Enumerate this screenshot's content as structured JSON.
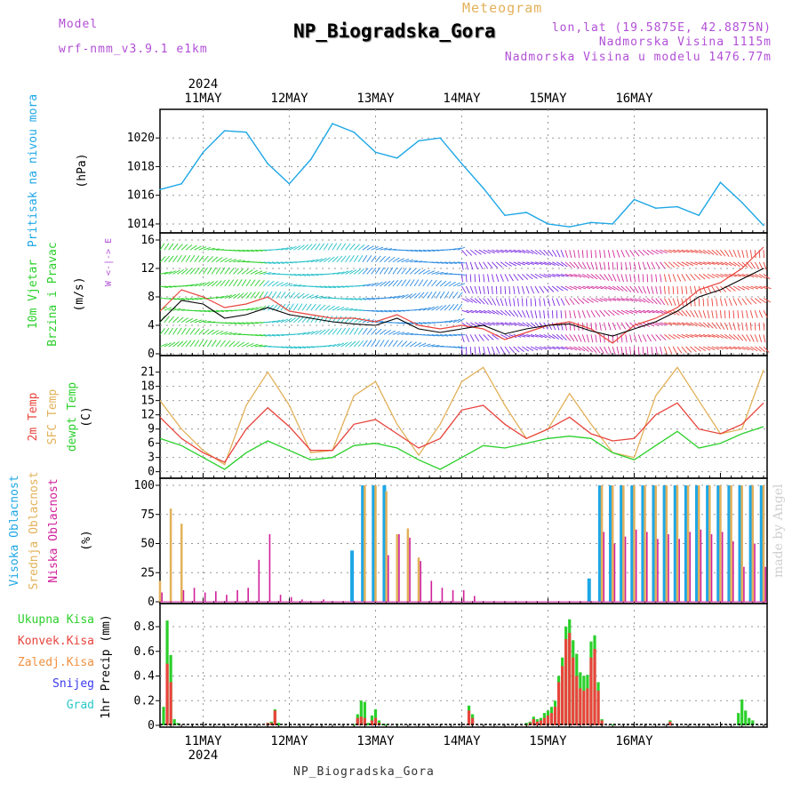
{
  "header": {
    "model_label": "Model",
    "model_name": "wrf-nmm_v3.9.1  e1km",
    "meteogram_label": "Meteogram",
    "station": "NP_Biogradska_Gora",
    "coords": "lon,lat (19.5875E, 42.8875N)",
    "elevation": "Nadmorska Visina 1115m",
    "model_elevation": "Nadmorska Visina u modelu 1476.77m",
    "footer_station": "NP_Biogradska_Gora",
    "signature": "made by Angel"
  },
  "colors": {
    "purple": "#b14fd6",
    "gold": "#e2b15a",
    "cyan": "#1ea7e6",
    "green": "#2bd02b",
    "red": "#e8443c",
    "orange": "#f09040",
    "blue": "#3a3af0",
    "teal": "#2cc8c8",
    "magenta": "#d0209a"
  },
  "chart_data": [
    {
      "panel": "pressure",
      "type": "line",
      "ylabel": "Pritisak na nivou mora",
      "unit": "(hPa)",
      "ylim": [
        1013.5,
        1021.5
      ],
      "yticks": [
        1014,
        1016,
        1018,
        1020
      ],
      "year": "2024",
      "day_labels": [
        "11MAY",
        "12MAY",
        "13MAY",
        "14MAY",
        "15MAY",
        "16MAY"
      ],
      "x_hours": [
        0,
        6,
        12,
        18,
        24,
        30,
        36,
        42,
        48,
        54,
        60,
        66,
        72,
        78,
        84,
        90,
        96,
        102,
        108,
        114,
        120,
        126,
        132,
        138,
        144,
        150,
        156,
        162,
        168
      ],
      "values": [
        1016.4,
        1016.8,
        1019.0,
        1020.5,
        1020.4,
        1018.2,
        1016.8,
        1018.5,
        1021.0,
        1020.4,
        1019.0,
        1018.6,
        1019.8,
        1020.0,
        1018.2,
        1016.5,
        1014.6,
        1014.8,
        1014.0,
        1013.8,
        1014.1,
        1014.0,
        1015.7,
        1015.1,
        1015.2,
        1014.6,
        1016.9,
        1015.5,
        1013.9
      ]
    },
    {
      "panel": "wind",
      "type": "line",
      "ylabel_1": "10m Vjetar",
      "ylabel_2": "Brzina i Pravac",
      "unit": "(m/s)",
      "direction_legend": "W  <-|->  E",
      "ylim": [
        0,
        16
      ],
      "yticks": [
        0,
        4,
        8,
        12,
        16
      ],
      "x_hours": [
        0,
        6,
        12,
        18,
        24,
        30,
        36,
        42,
        48,
        54,
        60,
        66,
        72,
        78,
        84,
        90,
        96,
        102,
        108,
        114,
        120,
        126,
        132,
        138,
        144,
        150,
        156,
        162,
        168
      ],
      "series": [
        {
          "name": "speed",
          "values": [
            4.5,
            7.5,
            7.0,
            5.0,
            5.5,
            6.5,
            5.5,
            5.0,
            4.5,
            4.2,
            4.0,
            5.0,
            3.5,
            3.0,
            3.5,
            4.0,
            2.8,
            3.5,
            4.0,
            4.2,
            3.2,
            2.5,
            3.5,
            4.5,
            6.0,
            8.0,
            9.0,
            10.5,
            12.0
          ]
        },
        {
          "name": "gust",
          "values": [
            6.0,
            9.0,
            8.0,
            6.5,
            7.0,
            8.0,
            6.0,
            5.5,
            5.0,
            5.0,
            4.5,
            5.5,
            4.0,
            3.5,
            4.0,
            3.5,
            2.0,
            3.0,
            4.0,
            4.5,
            3.5,
            1.5,
            4.0,
            5.0,
            6.5,
            9.0,
            10.0,
            12.0,
            15.0
          ]
        }
      ]
    },
    {
      "panel": "temperature",
      "type": "line",
      "ylabel_1": "2m Temp",
      "ylabel_2": "SFC Temp",
      "ylabel_3": "dewpt Temp",
      "unit": "(C)",
      "ylim": [
        -1,
        23
      ],
      "yticks": [
        0,
        3,
        6,
        9,
        12,
        15,
        18,
        21
      ],
      "x_hours": [
        0,
        6,
        12,
        18,
        24,
        30,
        36,
        42,
        48,
        54,
        60,
        66,
        72,
        78,
        84,
        90,
        96,
        102,
        108,
        114,
        120,
        126,
        132,
        138,
        144,
        150,
        156,
        162,
        168
      ],
      "series": [
        {
          "name": "2m",
          "values": [
            11.5,
            7.0,
            4.0,
            2.0,
            9.0,
            13.5,
            9.5,
            4.5,
            4.5,
            10.0,
            11.0,
            8.0,
            5.0,
            7.0,
            13.0,
            14.0,
            10.0,
            7.0,
            9.0,
            11.5,
            8.0,
            6.5,
            7.0,
            12.0,
            14.5,
            9.0,
            8.0,
            10.0,
            14.5
          ]
        },
        {
          "name": "sfc",
          "values": [
            15.0,
            9.0,
            4.5,
            1.5,
            14.0,
            21.0,
            14.0,
            4.0,
            4.5,
            16.0,
            19.0,
            10.0,
            3.5,
            10.0,
            19.0,
            22.0,
            14.0,
            7.0,
            9.0,
            16.5,
            10.0,
            4.0,
            3.0,
            16.0,
            22.0,
            15.0,
            8.0,
            9.0,
            21.5
          ]
        },
        {
          "name": "dewpt",
          "values": [
            7.0,
            5.5,
            3.0,
            0.5,
            4.0,
            6.5,
            4.5,
            2.5,
            3.0,
            5.5,
            6.0,
            5.0,
            2.5,
            0.5,
            3.0,
            5.5,
            5.0,
            6.0,
            7.0,
            7.5,
            7.0,
            4.0,
            2.5,
            5.5,
            8.5,
            5.0,
            6.0,
            8.0,
            9.5
          ]
        }
      ]
    },
    {
      "panel": "clouds",
      "type": "bar",
      "ylabel_1": "Visoka Oblacnost",
      "ylabel_2": "Srednja Oblacnost",
      "ylabel_3": "Niska Oblacnost",
      "unit": "(%)",
      "ylim": [
        0,
        100
      ],
      "yticks": [
        0,
        25,
        50,
        75,
        100
      ],
      "x_hours": [
        0,
        3,
        6,
        9,
        12,
        15,
        18,
        21,
        24,
        27,
        30,
        33,
        36,
        39,
        42,
        45,
        48,
        51,
        54,
        57,
        60,
        63,
        66,
        69,
        72,
        75,
        78,
        81,
        84,
        87,
        90,
        93,
        96,
        99,
        102,
        105,
        108,
        111,
        114,
        117,
        120,
        123,
        126,
        129,
        132,
        135,
        138,
        141,
        144,
        147,
        150,
        153,
        156,
        159,
        162,
        165,
        168
      ],
      "series": [
        {
          "name": "high",
          "values": [
            0,
            0,
            0,
            0,
            0,
            0,
            0,
            0,
            0,
            0,
            0,
            0,
            0,
            0,
            0,
            0,
            0,
            0,
            44,
            100,
            100,
            100,
            0,
            0,
            0,
            0,
            0,
            0,
            0,
            0,
            0,
            0,
            0,
            0,
            0,
            0,
            0,
            0,
            0,
            0,
            20,
            100,
            100,
            100,
            100,
            100,
            100,
            100,
            100,
            100,
            100,
            100,
            100,
            100,
            100,
            100,
            100
          ]
        },
        {
          "name": "middle",
          "values": [
            18,
            80,
            67,
            0,
            0,
            0,
            0,
            0,
            0,
            0,
            0,
            0,
            0,
            0,
            0,
            0,
            0,
            0,
            0,
            100,
            100,
            95,
            58,
            63,
            38,
            0,
            0,
            0,
            0,
            0,
            0,
            0,
            0,
            0,
            0,
            0,
            0,
            0,
            0,
            0,
            0,
            100,
            100,
            100,
            100,
            100,
            100,
            100,
            100,
            100,
            100,
            100,
            100,
            100,
            100,
            100,
            100
          ]
        },
        {
          "name": "low",
          "values": [
            8,
            0,
            10,
            12,
            8,
            9,
            6,
            10,
            12,
            36,
            58,
            6,
            4,
            2,
            0,
            2,
            0,
            0,
            0,
            0,
            0,
            40,
            58,
            55,
            35,
            18,
            12,
            10,
            10,
            5,
            0,
            0,
            0,
            0,
            0,
            0,
            0,
            0,
            0,
            0,
            0,
            60,
            50,
            56,
            62,
            60,
            54,
            58,
            54,
            60,
            62,
            58,
            60,
            52,
            30,
            50,
            30
          ]
        }
      ]
    },
    {
      "panel": "precip",
      "type": "bar",
      "ylabel": "1hr Precip (mm)",
      "legend": [
        "Ukupna Kisa",
        "Konvek.Kisa",
        "Zaledj.Kisa",
        "Snijeg",
        "Grad"
      ],
      "ylim": [
        0,
        0.93
      ],
      "yticks": [
        0,
        0.2,
        0.4,
        0.6,
        0.8
      ],
      "x_hours": [
        1,
        2,
        3,
        4,
        5,
        30,
        31,
        32,
        33,
        54,
        55,
        56,
        57,
        58,
        59,
        60,
        61,
        62,
        63,
        64,
        66,
        86,
        87,
        102,
        103,
        104,
        105,
        106,
        107,
        108,
        109,
        110,
        111,
        112,
        113,
        114,
        115,
        116,
        117,
        118,
        119,
        120,
        121,
        122,
        123,
        124,
        125,
        126,
        127,
        128,
        129,
        130,
        131,
        142,
        161,
        162,
        163,
        164,
        165
      ],
      "series": [
        {
          "name": "total",
          "values": [
            0.15,
            0.85,
            0.57,
            0.05,
            0.02,
            0.02,
            0.03,
            0.13,
            0.02,
            0.01,
            0.09,
            0.2,
            0.19,
            0.02,
            0.08,
            0.13,
            0.04,
            0.01,
            0.01,
            0.0,
            0.01,
            0.16,
            0.09,
            0.02,
            0.03,
            0.07,
            0.05,
            0.06,
            0.1,
            0.12,
            0.15,
            0.2,
            0.4,
            0.55,
            0.8,
            0.86,
            0.69,
            0.58,
            0.43,
            0.4,
            0.41,
            0.68,
            0.73,
            0.35,
            0.05,
            0.0,
            0.0,
            0.01,
            0.0,
            0.0,
            0.0,
            0.0,
            0.0,
            0.04,
            0.1,
            0.21,
            0.12,
            0.06,
            0.04
          ]
        },
        {
          "name": "convective",
          "values": [
            0.0,
            0.5,
            0.35,
            0.0,
            0.0,
            0.02,
            0.02,
            0.12,
            0.0,
            0.0,
            0.06,
            0.07,
            0.06,
            0.0,
            0.04,
            0.06,
            0.02,
            0.0,
            0.0,
            0.0,
            0.0,
            0.12,
            0.06,
            0.0,
            0.02,
            0.05,
            0.03,
            0.04,
            0.06,
            0.08,
            0.1,
            0.15,
            0.35,
            0.48,
            0.7,
            0.75,
            0.55,
            0.4,
            0.3,
            0.28,
            0.3,
            0.55,
            0.62,
            0.28,
            0.04,
            0.0,
            0.0,
            0.0,
            0.0,
            0.0,
            0.0,
            0.0,
            0.0,
            0.03,
            0.0,
            0.0,
            0.0,
            0.0,
            0.0
          ]
        }
      ]
    }
  ]
}
